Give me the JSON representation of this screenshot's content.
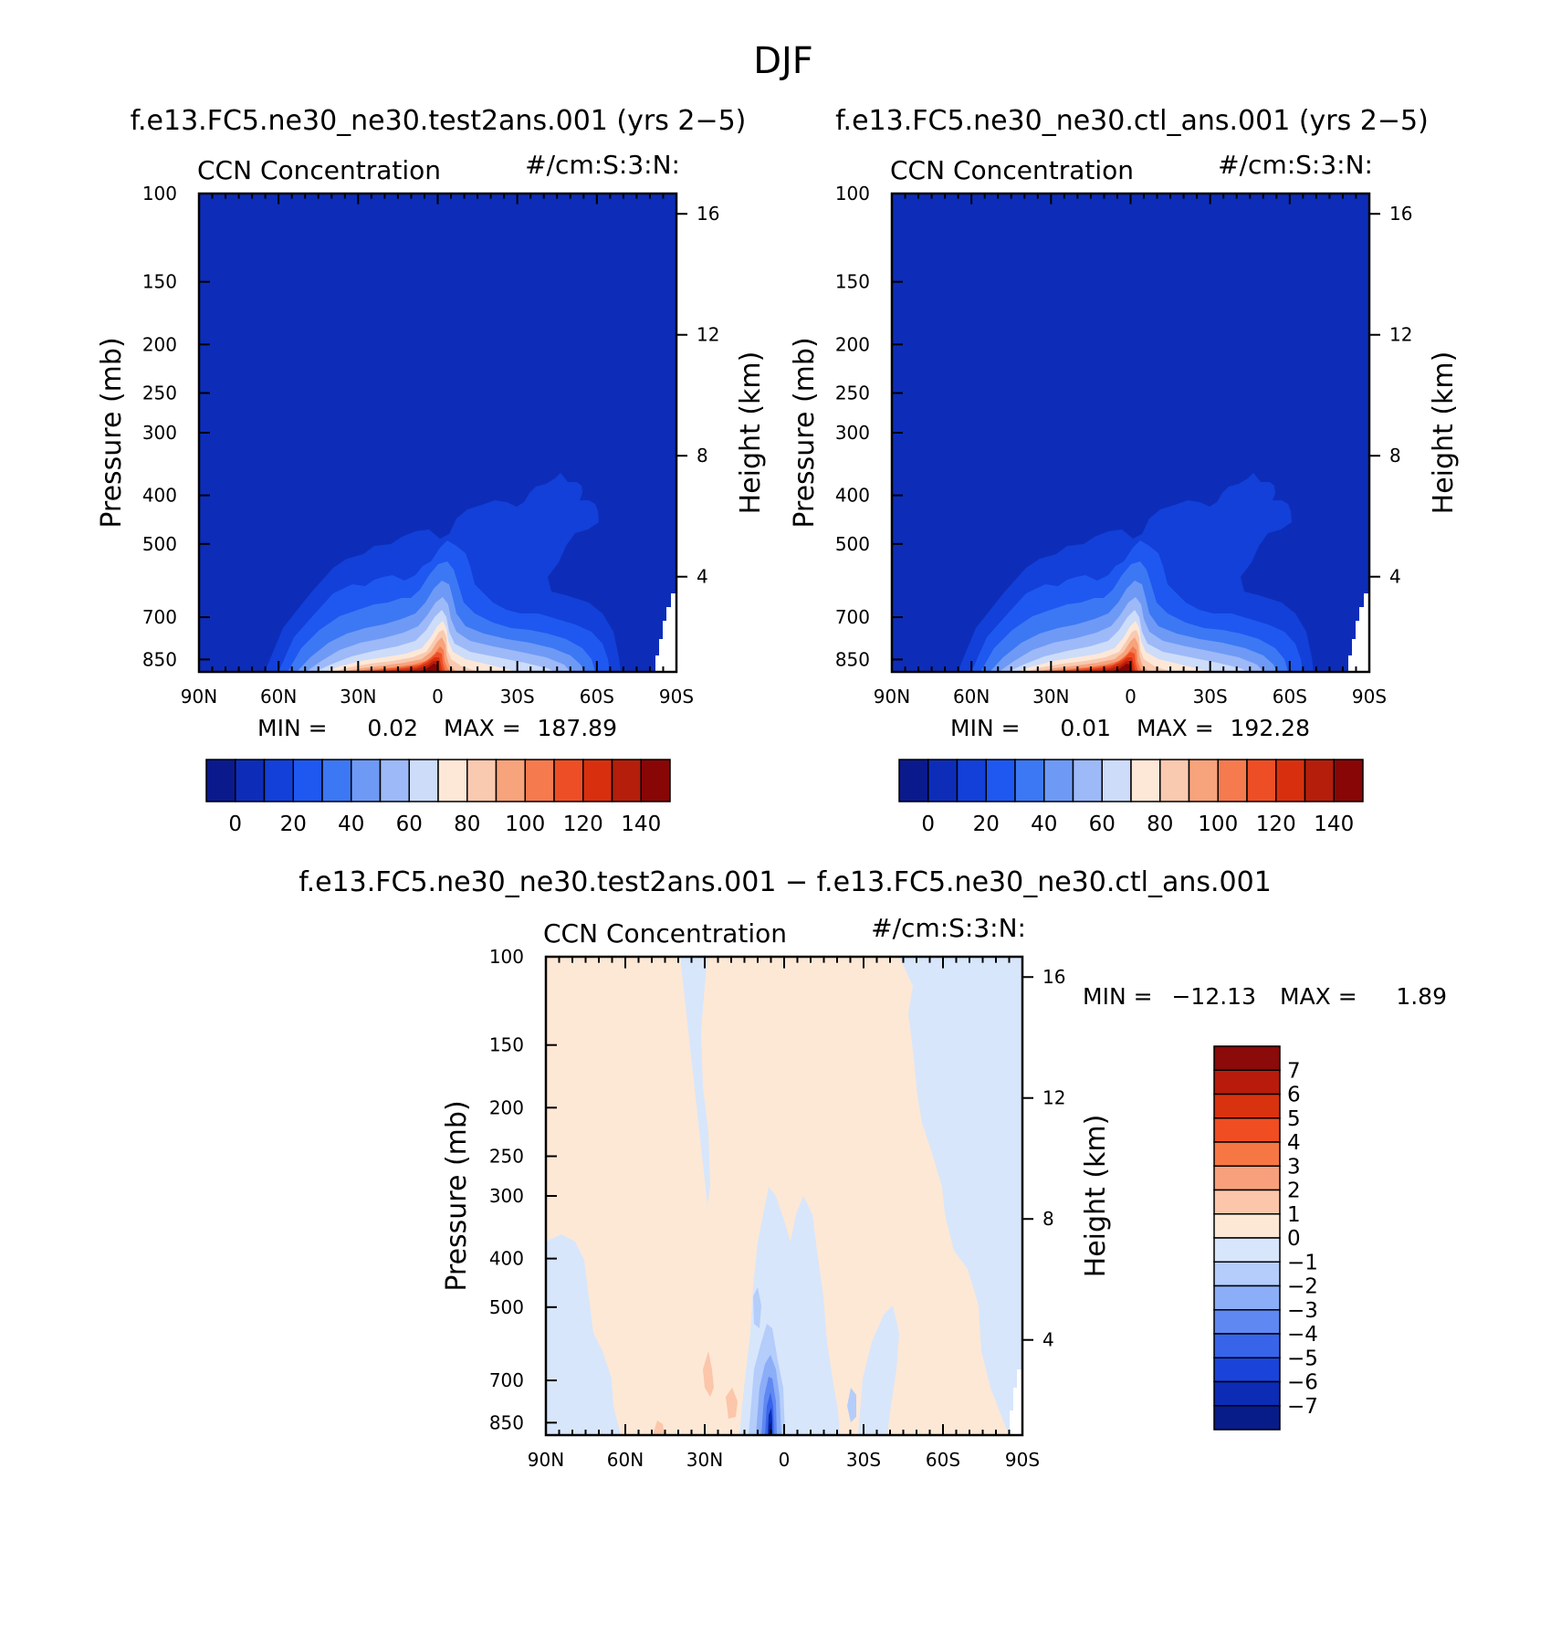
{
  "figure": {
    "title": "DJF",
    "colors": {
      "abs_palette": [
        "#0a1a8c",
        "#0d2db9",
        "#1240d8",
        "#1e58f0",
        "#3c78f4",
        "#6e9af6",
        "#9db9f8",
        "#cddcf9",
        "#fde8d8",
        "#f9c9b0",
        "#f7a37c",
        "#f57b4f",
        "#ee4e25",
        "#d8300f",
        "#b41e0b",
        "#880606"
      ],
      "diff_palette_top_to_bottom": [
        "#8b0a0a",
        "#b81b0b",
        "#d9320f",
        "#f04d23",
        "#f77744",
        "#f8a07c",
        "#fbc6a9",
        "#fde8d6",
        "#d7e6fb",
        "#b4cdfa",
        "#8cadf7",
        "#5f88f2",
        "#3864ea",
        "#1a44d9",
        "#0c2cb5",
        "#071c88"
      ]
    }
  },
  "chart_data": [
    {
      "id": "panel_test",
      "type": "heatmap",
      "plot_type": "filled contour (latitude-pressure zonal mean)",
      "title": "f.e13.FC5.ne30_ne30.test2ans.001 (yrs 2−5)",
      "left_title": "CCN Concentration",
      "right_title": "#/cm:S:3:N:",
      "xlabel": "",
      "ylabel": "Pressure (mb)",
      "y2label": "Height (km)",
      "x_ticks": [
        "90N",
        "60N",
        "30N",
        "0",
        "30S",
        "60S",
        "90S"
      ],
      "y_ticks": [
        "100",
        "150",
        "200",
        "250",
        "300",
        "400",
        "500",
        "700",
        "850"
      ],
      "y2_ticks": [
        "16",
        "12",
        "8",
        "4"
      ],
      "min_label": "MIN =",
      "min_value": "0.02",
      "max_label": "MAX =",
      "max_value": "187.89",
      "colorbar_labels": [
        "0",
        "20",
        "40",
        "60",
        "80",
        "100",
        "120",
        "140"
      ],
      "ylim": [
        900,
        100
      ],
      "xlim": [
        90,
        -90
      ],
      "y_scale": "log",
      "maximum_location": {
        "lat": 8,
        "pressure": 900,
        "value": 187.89
      }
    },
    {
      "id": "panel_ctl",
      "type": "heatmap",
      "plot_type": "filled contour (latitude-pressure zonal mean)",
      "title": "f.e13.FC5.ne30_ne30.ctl_ans.001 (yrs 2−5)",
      "left_title": "CCN Concentration",
      "right_title": "#/cm:S:3:N:",
      "xlabel": "",
      "ylabel": "Pressure (mb)",
      "y2label": "Height (km)",
      "x_ticks": [
        "90N",
        "60N",
        "30N",
        "0",
        "30S",
        "60S",
        "90S"
      ],
      "y_ticks": [
        "100",
        "150",
        "200",
        "250",
        "300",
        "400",
        "500",
        "700",
        "850"
      ],
      "y2_ticks": [
        "16",
        "12",
        "8",
        "4"
      ],
      "min_label": "MIN =",
      "min_value": "0.01",
      "max_label": "MAX =",
      "max_value": "192.28",
      "colorbar_labels": [
        "0",
        "20",
        "40",
        "60",
        "80",
        "100",
        "120",
        "140"
      ],
      "ylim": [
        900,
        100
      ],
      "xlim": [
        90,
        -90
      ],
      "y_scale": "log",
      "maximum_location": {
        "lat": 8,
        "pressure": 900,
        "value": 192.28
      }
    },
    {
      "id": "panel_diff",
      "type": "heatmap",
      "plot_type": "filled contour difference (latitude-pressure)",
      "title": "f.e13.FC5.ne30_ne30.test2ans.001 − f.e13.FC5.ne30_ne30.ctl_ans.001",
      "left_title": "CCN Concentration",
      "right_title": "#/cm:S:3:N:",
      "xlabel": "",
      "ylabel": "Pressure (mb)",
      "y2label": "Height (km)",
      "x_ticks": [
        "90N",
        "60N",
        "30N",
        "0",
        "30S",
        "60S",
        "90S"
      ],
      "y_ticks": [
        "100",
        "150",
        "200",
        "250",
        "300",
        "400",
        "500",
        "700",
        "850"
      ],
      "y2_ticks": [
        "16",
        "12",
        "8",
        "4"
      ],
      "min_label": "MIN =",
      "min_value": "−12.13",
      "max_label": "MAX =",
      "max_value": "1.89",
      "colorbar_labels": [
        "7",
        "6",
        "5",
        "4",
        "3",
        "2",
        "1",
        "0",
        "−1",
        "−2",
        "−3",
        "−4",
        "−5",
        "−6",
        "−7"
      ],
      "ylim": [
        900,
        100
      ],
      "xlim": [
        90,
        -90
      ],
      "y_scale": "log",
      "minimum_location": {
        "lat": 0,
        "pressure": 900,
        "value": -12.13
      }
    }
  ]
}
